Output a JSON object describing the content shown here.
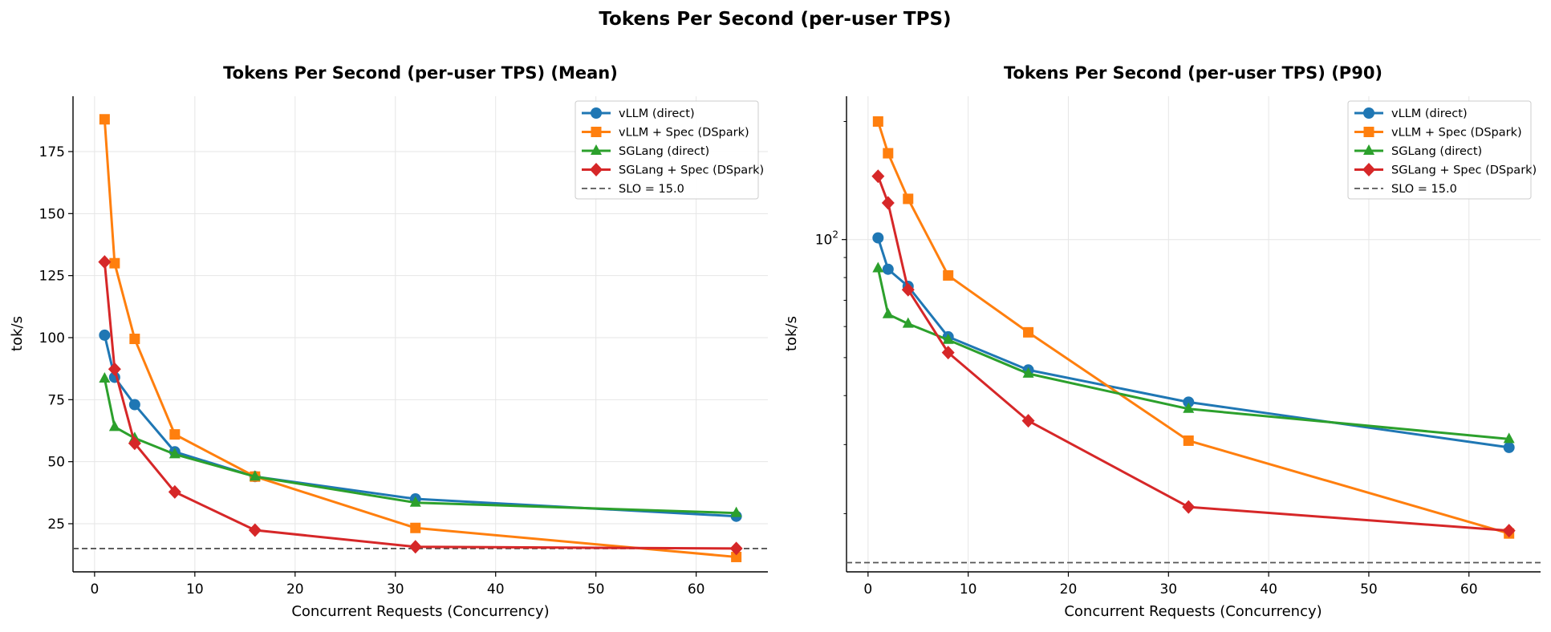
{
  "figure": {
    "suptitle": "Tokens Per Second (per-user TPS)"
  },
  "colors": {
    "vllm_direct": "#1f77b4",
    "vllm_spec": "#ff7f0e",
    "sglang_direct": "#2ca02c",
    "sglang_spec": "#d62728",
    "slo": "#555555",
    "grid": "#e6e6e6"
  },
  "chart_data": [
    {
      "type": "line",
      "title": "Tokens Per Second (per-user TPS) (Mean)",
      "xlabel": "Concurrent Requests (Concurrency)",
      "ylabel": "tok/s",
      "yscale": "linear",
      "xlim": [
        -2.15,
        67.15
      ],
      "ylim": [
        5.6,
        197.3
      ],
      "xticks": [
        0,
        10,
        20,
        30,
        40,
        50,
        60
      ],
      "yticks": [
        25,
        50,
        75,
        100,
        125,
        150,
        175
      ],
      "ytick_labels": [
        "25",
        "50",
        "75",
        "100",
        "125",
        "150",
        "175"
      ],
      "grid": true,
      "legend_position": "upper right",
      "x": [
        1,
        2,
        4,
        8,
        16,
        32,
        64
      ],
      "series": [
        {
          "name": "vLLM (direct)",
          "marker": "circle",
          "color": "#1f77b4",
          "values": [
            101,
            84,
            73,
            54,
            44,
            35,
            28
          ]
        },
        {
          "name": "vLLM + Spec (DSpark)",
          "marker": "square",
          "color": "#ff7f0e",
          "values": [
            188,
            130,
            99.5,
            61,
            44,
            23.3,
            11.6
          ]
        },
        {
          "name": "SGLang (direct)",
          "marker": "triangle",
          "color": "#2ca02c",
          "values": [
            83.5,
            64,
            59.5,
            53,
            44,
            33.5,
            29.3
          ]
        },
        {
          "name": "SGLang + Spec (DSpark)",
          "marker": "diamond",
          "color": "#d62728",
          "values": [
            130.5,
            87.3,
            57.4,
            37.8,
            22.4,
            15.7,
            15
          ]
        }
      ],
      "reference_line": {
        "name": "SLO = 15.0",
        "value": 15.0,
        "style": "dashed",
        "color": "#555555"
      }
    },
    {
      "type": "line",
      "title": "Tokens Per Second (per-user TPS) (P90)",
      "xlabel": "Concurrent Requests (Concurrency)",
      "ylabel": "tok/s",
      "yscale": "log",
      "xlim": [
        -2.15,
        67.15
      ],
      "ylim": [
        14.21,
        232
      ],
      "xticks": [
        0,
        10,
        20,
        30,
        40,
        50,
        60
      ],
      "yticks": [
        100
      ],
      "ytick_labels": [
        "10^2"
      ],
      "grid": true,
      "legend_position": "upper right",
      "x": [
        1,
        2,
        4,
        8,
        16,
        32,
        64
      ],
      "series": [
        {
          "name": "vLLM (direct)",
          "marker": "circle",
          "color": "#1f77b4",
          "values": [
            101,
            84,
            76,
            56.5,
            46.5,
            38.5,
            29.5
          ]
        },
        {
          "name": "vLLM + Spec (DSpark)",
          "marker": "square",
          "color": "#ff7f0e",
          "values": [
            200,
            166,
            127,
            81,
            58,
            30.7,
            17.8
          ]
        },
        {
          "name": "SGLang (direct)",
          "marker": "triangle",
          "color": "#2ca02c",
          "values": [
            84.5,
            64.5,
            61,
            55.5,
            45.5,
            37,
            31
          ]
        },
        {
          "name": "SGLang + Spec (DSpark)",
          "marker": "diamond",
          "color": "#d62728",
          "values": [
            145,
            124,
            74.5,
            51.5,
            34.5,
            20.8,
            18.1
          ]
        }
      ],
      "reference_line": {
        "name": "SLO = 15.0",
        "value": 15.0,
        "style": "dashed",
        "color": "#555555"
      }
    }
  ]
}
